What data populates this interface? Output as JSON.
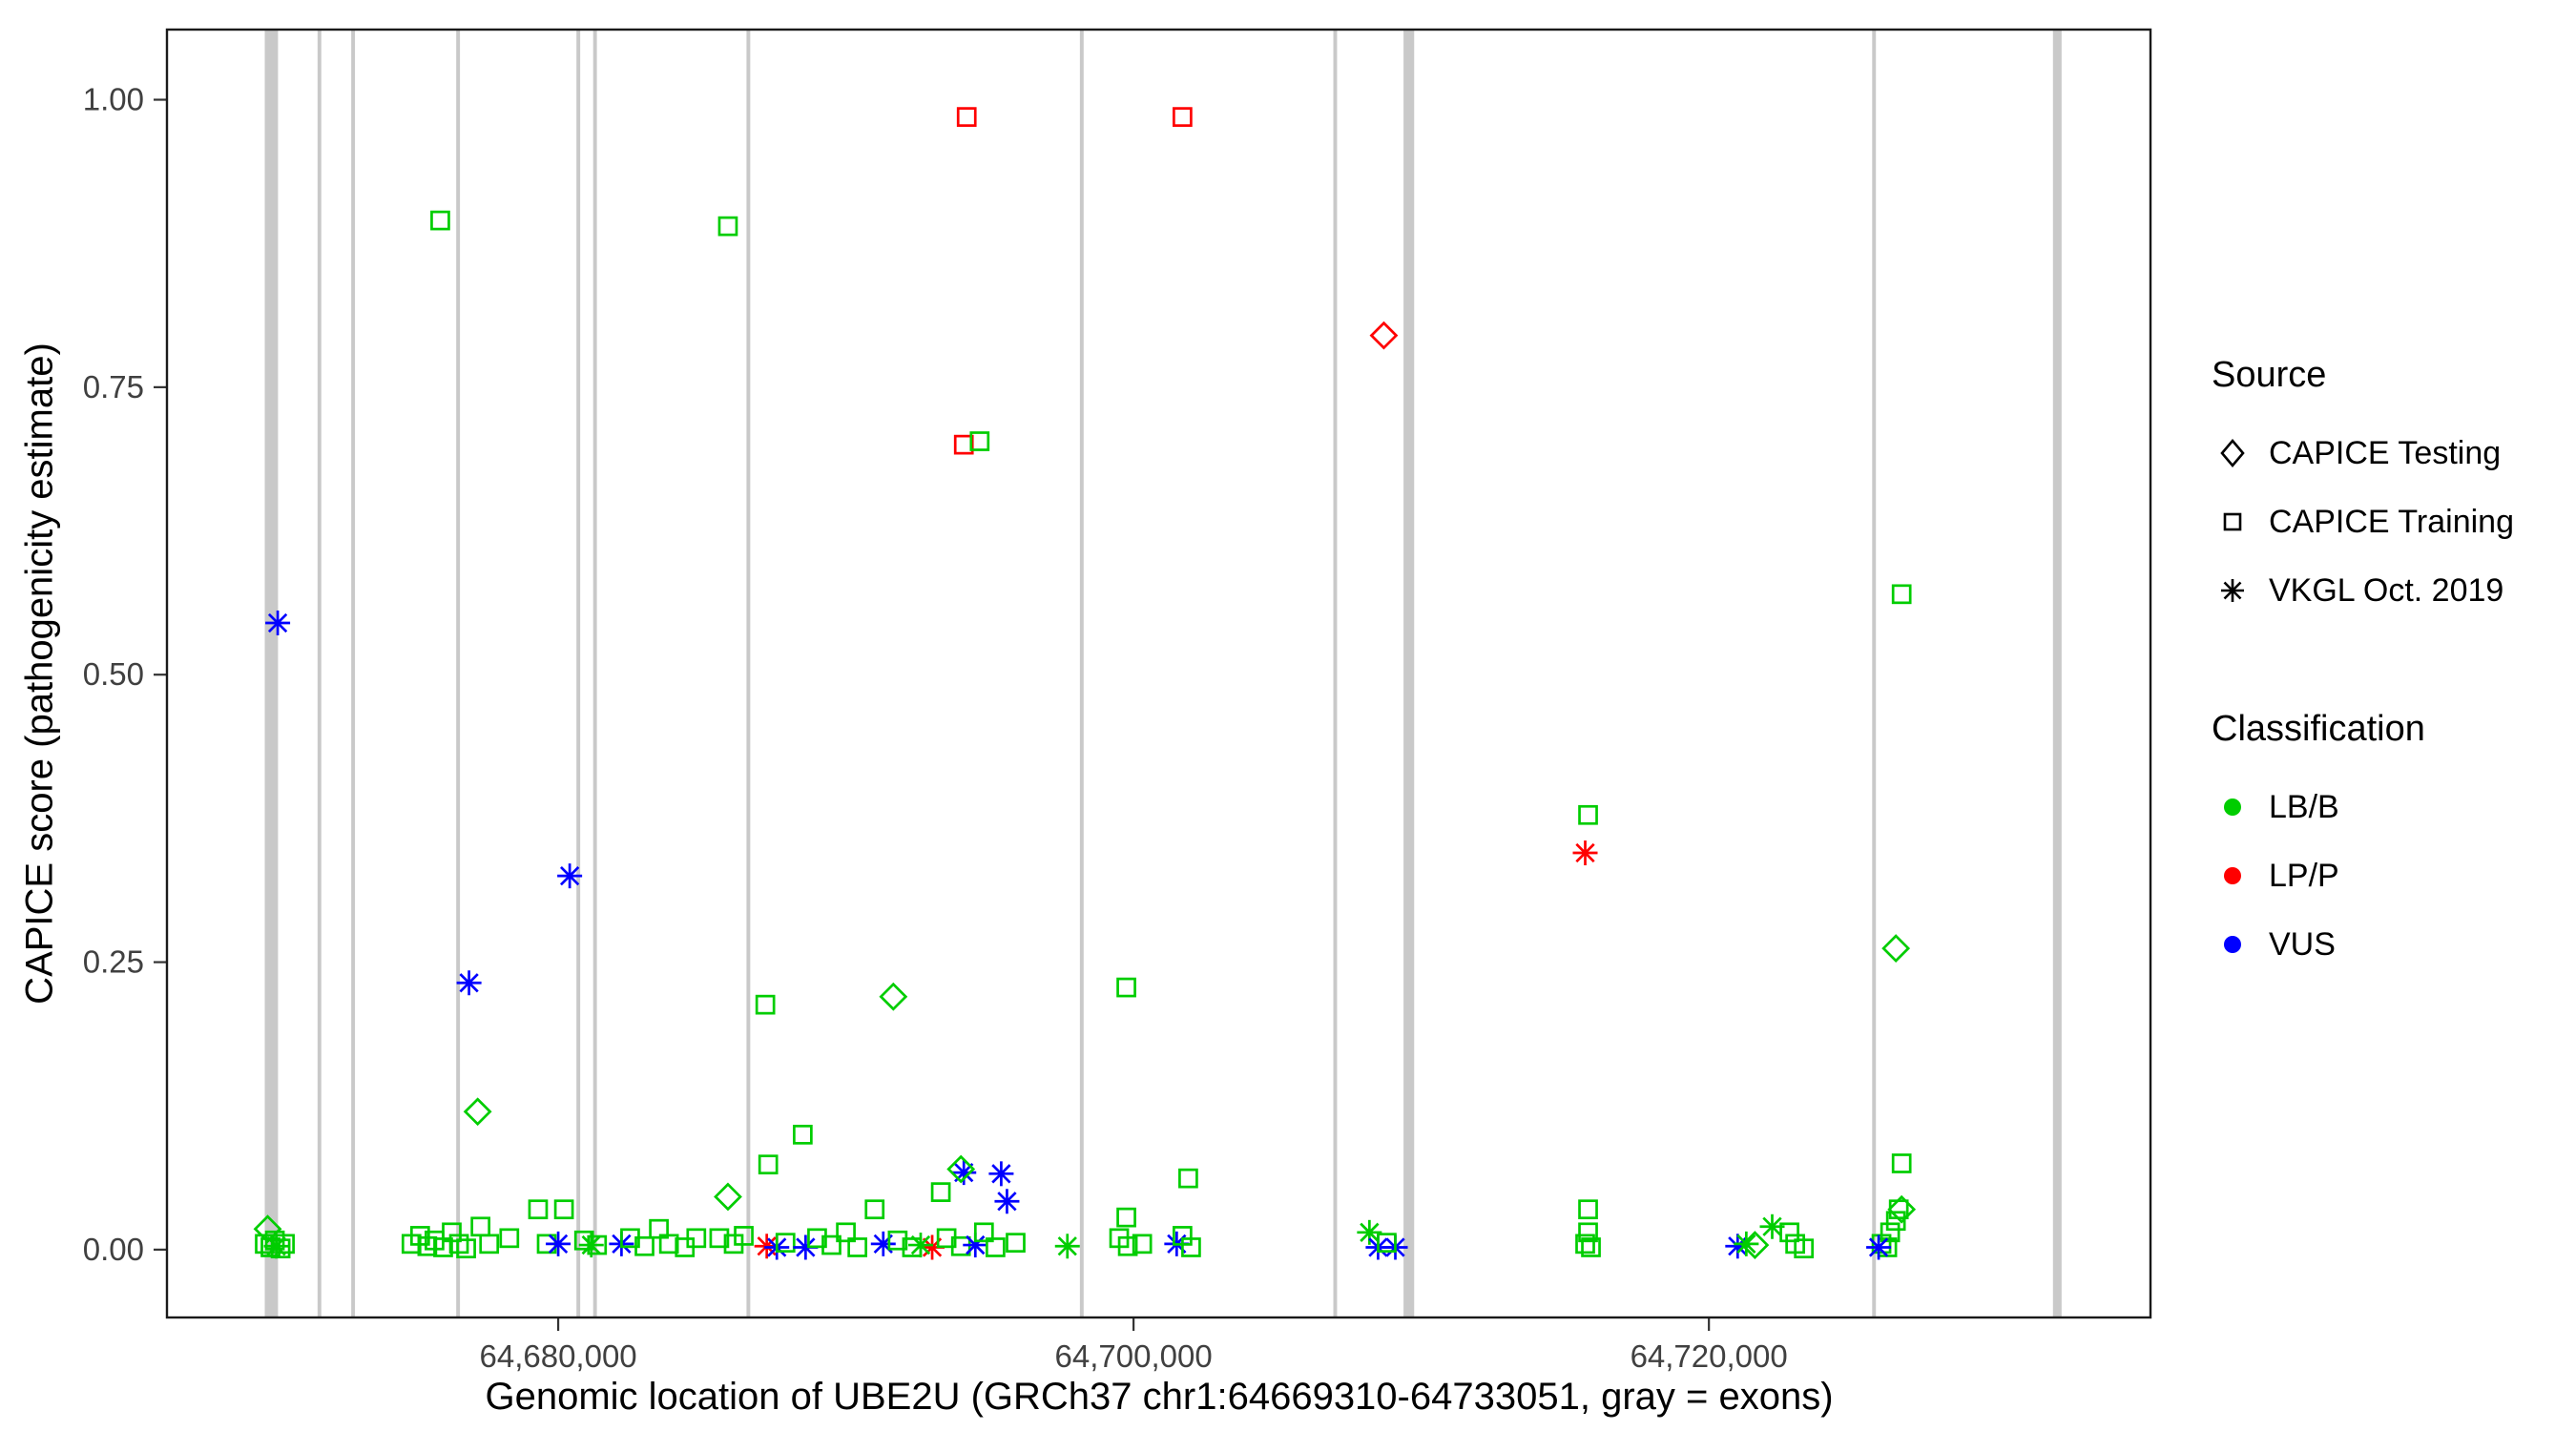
{
  "chart_data": {
    "type": "scatter",
    "title": "",
    "xlabel": "Genomic location of UBE2U (GRCh37 chr1:64669310-64733051, gray = exons)",
    "ylabel": "CAPICE score (pathogenicity estimate)",
    "xlim": [
      64666400,
      64735350
    ],
    "ylim": [
      -0.059,
      1.061
    ],
    "grid": false,
    "legend_position": "right",
    "x_ticks": [
      {
        "value": 64680000,
        "label": "64,680,000"
      },
      {
        "value": 64700000,
        "label": "64,700,000"
      },
      {
        "value": 64720000,
        "label": "64,720,000"
      }
    ],
    "y_ticks": [
      {
        "value": 0.0,
        "label": "0.00"
      },
      {
        "value": 0.25,
        "label": "0.25"
      },
      {
        "value": 0.5,
        "label": "0.50"
      },
      {
        "value": 0.75,
        "label": "0.75"
      },
      {
        "value": 1.0,
        "label": "1.00"
      }
    ],
    "exon_color": "#c9c9c9",
    "exons": [
      {
        "pos": 64670030,
        "width_bp": 460
      },
      {
        "pos": 64671700,
        "width_bp": 130
      },
      {
        "pos": 64672870,
        "width_bp": 130
      },
      {
        "pos": 64676520,
        "width_bp": 130
      },
      {
        "pos": 64680700,
        "width_bp": 130
      },
      {
        "pos": 64681280,
        "width_bp": 130
      },
      {
        "pos": 64686610,
        "width_bp": 130
      },
      {
        "pos": 64698200,
        "width_bp": 130
      },
      {
        "pos": 64707010,
        "width_bp": 130
      },
      {
        "pos": 64709570,
        "width_bp": 370
      },
      {
        "pos": 64725740,
        "width_bp": 130
      },
      {
        "pos": 64732110,
        "width_bp": 300
      }
    ],
    "colors": {
      "LB/B": "#00cd00",
      "LP/P": "#ff0000",
      "VUS": "#0000ff"
    },
    "shapes": {
      "testing": "diamond",
      "training": "square",
      "vkgl": "asterisk"
    },
    "source_names": {
      "testing": "CAPICE Testing",
      "training": "CAPICE Training",
      "vkgl": "VKGL Oct. 2019"
    },
    "points": [
      {
        "x": 64694200,
        "y": 0.985,
        "s": "training",
        "c": "LP/P"
      },
      {
        "x": 64701700,
        "y": 0.985,
        "s": "training",
        "c": "LP/P"
      },
      {
        "x": 64675900,
        "y": 0.895,
        "s": "training",
        "c": "LB/B"
      },
      {
        "x": 64685900,
        "y": 0.89,
        "s": "training",
        "c": "LB/B"
      },
      {
        "x": 64708700,
        "y": 0.795,
        "s": "testing",
        "c": "LP/P"
      },
      {
        "x": 64694100,
        "y": 0.7,
        "s": "training",
        "c": "LP/P"
      },
      {
        "x": 64694650,
        "y": 0.703,
        "s": "training",
        "c": "LB/B"
      },
      {
        "x": 64726700,
        "y": 0.57,
        "s": "training",
        "c": "LB/B"
      },
      {
        "x": 64670250,
        "y": 0.545,
        "s": "vkgl",
        "c": "VUS"
      },
      {
        "x": 64715800,
        "y": 0.378,
        "s": "training",
        "c": "LB/B"
      },
      {
        "x": 64715700,
        "y": 0.345,
        "s": "vkgl",
        "c": "LP/P"
      },
      {
        "x": 64680400,
        "y": 0.325,
        "s": "vkgl",
        "c": "VUS"
      },
      {
        "x": 64726500,
        "y": 0.262,
        "s": "testing",
        "c": "LB/B"
      },
      {
        "x": 64676900,
        "y": 0.232,
        "s": "vkgl",
        "c": "VUS"
      },
      {
        "x": 64699750,
        "y": 0.228,
        "s": "training",
        "c": "LB/B"
      },
      {
        "x": 64687200,
        "y": 0.213,
        "s": "training",
        "c": "LB/B"
      },
      {
        "x": 64691650,
        "y": 0.22,
        "s": "testing",
        "c": "LB/B"
      },
      {
        "x": 64677200,
        "y": 0.12,
        "s": "testing",
        "c": "LB/B"
      },
      {
        "x": 64688500,
        "y": 0.1,
        "s": "training",
        "c": "LB/B"
      },
      {
        "x": 64687300,
        "y": 0.074,
        "s": "training",
        "c": "LB/B"
      },
      {
        "x": 64726700,
        "y": 0.075,
        "s": "training",
        "c": "LB/B"
      },
      {
        "x": 64701900,
        "y": 0.062,
        "s": "training",
        "c": "LB/B"
      },
      {
        "x": 64694100,
        "y": 0.067,
        "s": "vkgl",
        "c": "VUS"
      },
      {
        "x": 64695400,
        "y": 0.066,
        "s": "vkgl",
        "c": "VUS"
      },
      {
        "x": 64695600,
        "y": 0.042,
        "s": "vkgl",
        "c": "VUS"
      },
      {
        "x": 64694000,
        "y": 0.07,
        "s": "testing",
        "c": "LB/B"
      },
      {
        "x": 64693300,
        "y": 0.05,
        "s": "training",
        "c": "LB/B"
      },
      {
        "x": 64685900,
        "y": 0.046,
        "s": "testing",
        "c": "LB/B"
      },
      {
        "x": 64669900,
        "y": 0.018,
        "s": "testing",
        "c": "LB/B"
      },
      {
        "x": 64669800,
        "y": 0.005,
        "s": "training",
        "c": "LB/B"
      },
      {
        "x": 64670000,
        "y": 0.002,
        "s": "training",
        "c": "LB/B"
      },
      {
        "x": 64670150,
        "y": 0.008,
        "s": "training",
        "c": "LB/B"
      },
      {
        "x": 64670350,
        "y": 0.001,
        "s": "training",
        "c": "LB/B"
      },
      {
        "x": 64670500,
        "y": 0.005,
        "s": "training",
        "c": "LB/B"
      },
      {
        "x": 64670200,
        "y": 0.003,
        "s": "vkgl",
        "c": "LB/B"
      },
      {
        "x": 64674900,
        "y": 0.005,
        "s": "training",
        "c": "LB/B"
      },
      {
        "x": 64675200,
        "y": 0.012,
        "s": "training",
        "c": "LB/B"
      },
      {
        "x": 64675450,
        "y": 0.003,
        "s": "training",
        "c": "LB/B"
      },
      {
        "x": 64675700,
        "y": 0.008,
        "s": "training",
        "c": "LB/B"
      },
      {
        "x": 64676000,
        "y": 0.002,
        "s": "training",
        "c": "LB/B"
      },
      {
        "x": 64676300,
        "y": 0.015,
        "s": "training",
        "c": "LB/B"
      },
      {
        "x": 64676550,
        "y": 0.005,
        "s": "training",
        "c": "LB/B"
      },
      {
        "x": 64676800,
        "y": 0.001,
        "s": "training",
        "c": "LB/B"
      },
      {
        "x": 64677300,
        "y": 0.02,
        "s": "training",
        "c": "LB/B"
      },
      {
        "x": 64677600,
        "y": 0.005,
        "s": "training",
        "c": "LB/B"
      },
      {
        "x": 64678300,
        "y": 0.01,
        "s": "training",
        "c": "LB/B"
      },
      {
        "x": 64679300,
        "y": 0.035,
        "s": "training",
        "c": "LB/B"
      },
      {
        "x": 64680200,
        "y": 0.035,
        "s": "training",
        "c": "LB/B"
      },
      {
        "x": 64679600,
        "y": 0.005,
        "s": "training",
        "c": "LB/B"
      },
      {
        "x": 64680000,
        "y": 0.005,
        "s": "vkgl",
        "c": "VUS"
      },
      {
        "x": 64681150,
        "y": 0.004,
        "s": "vkgl",
        "c": "LB/B"
      },
      {
        "x": 64680900,
        "y": 0.008,
        "s": "training",
        "c": "LB/B"
      },
      {
        "x": 64681350,
        "y": 0.004,
        "s": "training",
        "c": "LB/B"
      },
      {
        "x": 64682200,
        "y": 0.005,
        "s": "vkgl",
        "c": "VUS"
      },
      {
        "x": 64682500,
        "y": 0.01,
        "s": "training",
        "c": "LB/B"
      },
      {
        "x": 64683000,
        "y": 0.003,
        "s": "training",
        "c": "LB/B"
      },
      {
        "x": 64683500,
        "y": 0.018,
        "s": "training",
        "c": "LB/B"
      },
      {
        "x": 64683850,
        "y": 0.005,
        "s": "training",
        "c": "LB/B"
      },
      {
        "x": 64684400,
        "y": 0.002,
        "s": "training",
        "c": "LB/B"
      },
      {
        "x": 64684800,
        "y": 0.01,
        "s": "training",
        "c": "LB/B"
      },
      {
        "x": 64685600,
        "y": 0.01,
        "s": "training",
        "c": "LB/B"
      },
      {
        "x": 64686100,
        "y": 0.005,
        "s": "training",
        "c": "LB/B"
      },
      {
        "x": 64687250,
        "y": 0.003,
        "s": "vkgl",
        "c": "LP/P"
      },
      {
        "x": 64686450,
        "y": 0.012,
        "s": "training",
        "c": "LB/B"
      },
      {
        "x": 64687600,
        "y": 0.002,
        "s": "vkgl",
        "c": "VUS"
      },
      {
        "x": 64687900,
        "y": 0.006,
        "s": "training",
        "c": "LB/B"
      },
      {
        "x": 64688600,
        "y": 0.002,
        "s": "vkgl",
        "c": "VUS"
      },
      {
        "x": 64689000,
        "y": 0.01,
        "s": "training",
        "c": "LB/B"
      },
      {
        "x": 64689500,
        "y": 0.004,
        "s": "training",
        "c": "LB/B"
      },
      {
        "x": 64690000,
        "y": 0.015,
        "s": "training",
        "c": "LB/B"
      },
      {
        "x": 64690400,
        "y": 0.002,
        "s": "training",
        "c": "LB/B"
      },
      {
        "x": 64691000,
        "y": 0.035,
        "s": "training",
        "c": "LB/B"
      },
      {
        "x": 64691300,
        "y": 0.005,
        "s": "vkgl",
        "c": "VUS"
      },
      {
        "x": 64691800,
        "y": 0.008,
        "s": "training",
        "c": "LB/B"
      },
      {
        "x": 64692300,
        "y": 0.002,
        "s": "training",
        "c": "LB/B"
      },
      {
        "x": 64693000,
        "y": 0.002,
        "s": "vkgl",
        "c": "LP/P"
      },
      {
        "x": 64692600,
        "y": 0.004,
        "s": "vkgl",
        "c": "LB/B"
      },
      {
        "x": 64693500,
        "y": 0.01,
        "s": "training",
        "c": "LB/B"
      },
      {
        "x": 64694000,
        "y": 0.003,
        "s": "training",
        "c": "LB/B"
      },
      {
        "x": 64694500,
        "y": 0.004,
        "s": "vkgl",
        "c": "VUS"
      },
      {
        "x": 64694800,
        "y": 0.015,
        "s": "training",
        "c": "LB/B"
      },
      {
        "x": 64695200,
        "y": 0.002,
        "s": "training",
        "c": "LB/B"
      },
      {
        "x": 64695900,
        "y": 0.006,
        "s": "training",
        "c": "LB/B"
      },
      {
        "x": 64697700,
        "y": 0.003,
        "s": "vkgl",
        "c": "LB/B"
      },
      {
        "x": 64699500,
        "y": 0.01,
        "s": "training",
        "c": "LB/B"
      },
      {
        "x": 64699800,
        "y": 0.003,
        "s": "training",
        "c": "LB/B"
      },
      {
        "x": 64699750,
        "y": 0.028,
        "s": "training",
        "c": "LB/B"
      },
      {
        "x": 64700300,
        "y": 0.005,
        "s": "training",
        "c": "LB/B"
      },
      {
        "x": 64701500,
        "y": 0.005,
        "s": "vkgl",
        "c": "VUS"
      },
      {
        "x": 64701700,
        "y": 0.012,
        "s": "training",
        "c": "LB/B"
      },
      {
        "x": 64702000,
        "y": 0.002,
        "s": "training",
        "c": "LB/B"
      },
      {
        "x": 64708200,
        "y": 0.015,
        "s": "vkgl",
        "c": "LB/B"
      },
      {
        "x": 64708500,
        "y": 0.002,
        "s": "vkgl",
        "c": "VUS"
      },
      {
        "x": 64709100,
        "y": 0.002,
        "s": "vkgl",
        "c": "VUS"
      },
      {
        "x": 64708800,
        "y": 0.006,
        "s": "training",
        "c": "LB/B"
      },
      {
        "x": 64715800,
        "y": 0.035,
        "s": "training",
        "c": "LB/B"
      },
      {
        "x": 64715800,
        "y": 0.015,
        "s": "training",
        "c": "LB/B"
      },
      {
        "x": 64715700,
        "y": 0.005,
        "s": "training",
        "c": "LB/B"
      },
      {
        "x": 64715900,
        "y": 0.002,
        "s": "training",
        "c": "LB/B"
      },
      {
        "x": 64721000,
        "y": 0.003,
        "s": "vkgl",
        "c": "VUS"
      },
      {
        "x": 64721300,
        "y": 0.005,
        "s": "vkgl",
        "c": "LB/B"
      },
      {
        "x": 64721600,
        "y": 0.004,
        "s": "testing",
        "c": "LB/B"
      },
      {
        "x": 64722200,
        "y": 0.02,
        "s": "vkgl",
        "c": "LB/B"
      },
      {
        "x": 64722800,
        "y": 0.015,
        "s": "training",
        "c": "LB/B"
      },
      {
        "x": 64723000,
        "y": 0.005,
        "s": "training",
        "c": "LB/B"
      },
      {
        "x": 64723300,
        "y": 0.001,
        "s": "training",
        "c": "LB/B"
      },
      {
        "x": 64726600,
        "y": 0.035,
        "s": "training",
        "c": "LB/B"
      },
      {
        "x": 64726700,
        "y": 0.035,
        "s": "testing",
        "c": "LB/B"
      },
      {
        "x": 64726500,
        "y": 0.025,
        "s": "training",
        "c": "LB/B"
      },
      {
        "x": 64726300,
        "y": 0.015,
        "s": "training",
        "c": "LB/B"
      },
      {
        "x": 64726000,
        "y": 0.005,
        "s": "training",
        "c": "LB/B"
      },
      {
        "x": 64726200,
        "y": 0.002,
        "s": "training",
        "c": "LB/B"
      },
      {
        "x": 64725900,
        "y": 0.002,
        "s": "vkgl",
        "c": "VUS"
      }
    ]
  },
  "axes": {
    "x_title": "Genomic location of UBE2U (GRCh37 chr1:64669310-64733051, gray = exons)",
    "y_title": "CAPICE score (pathogenicity estimate)"
  },
  "legend": {
    "source_title": "Source",
    "source_items": [
      {
        "label": "CAPICE Testing",
        "shape": "diamond"
      },
      {
        "label": "CAPICE Training",
        "shape": "square"
      },
      {
        "label": "VKGL Oct. 2019",
        "shape": "asterisk"
      }
    ],
    "class_title": "Classification",
    "class_items": [
      {
        "label": "LB/B",
        "color": "#00cd00"
      },
      {
        "label": "LP/P",
        "color": "#ff0000"
      },
      {
        "label": "VUS",
        "color": "#0000ff"
      }
    ]
  }
}
